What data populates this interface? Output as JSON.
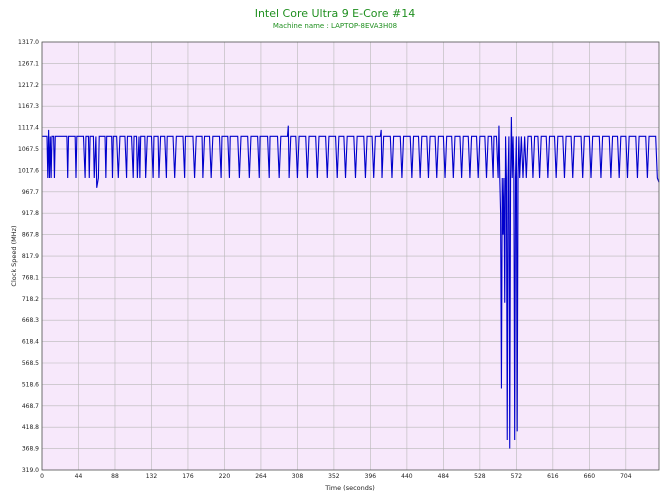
{
  "chart_data": {
    "type": "line",
    "title": "Intel Core Ultra 9 E-Core #14",
    "subtitle": "Machine name : LAPTOP-8EVA3H08",
    "xlabel": "Time (seconds)",
    "ylabel": "Clock Speed (MHz)",
    "xlim": [
      0,
      744
    ],
    "ylim": [
      319.0,
      1317.0
    ],
    "x_ticks": [
      0,
      44,
      88,
      132,
      176,
      220,
      264,
      308,
      352,
      396,
      440,
      484,
      528,
      572,
      616,
      660,
      704
    ],
    "y_ticks": [
      319.0,
      368.9,
      418.8,
      468.7,
      518.6,
      568.5,
      618.4,
      668.3,
      718.2,
      768.1,
      817.9,
      867.8,
      917.8,
      967.7,
      1017.6,
      1067.5,
      1117.4,
      1167.3,
      1217.2,
      1267.1,
      1317.0
    ],
    "grid": true,
    "colors": {
      "line": "#0000cc",
      "plot_bg": "#f7e8fb",
      "grid": "#b8b8b8",
      "title": "#1f8f1f"
    },
    "series": [
      {
        "values": [
          [
            0,
            1097
          ],
          [
            6,
            1097
          ],
          [
            7,
            1000
          ],
          [
            8,
            1112
          ],
          [
            9,
            1000
          ],
          [
            10,
            1097
          ],
          [
            11,
            1000
          ],
          [
            12,
            1097
          ],
          [
            14,
            1097
          ],
          [
            15,
            1000
          ],
          [
            16,
            1097
          ],
          [
            30,
            1097
          ],
          [
            31,
            1000
          ],
          [
            32,
            1097
          ],
          [
            40,
            1097
          ],
          [
            41,
            1000
          ],
          [
            42,
            1097
          ],
          [
            50,
            1097
          ],
          [
            52,
            1000
          ],
          [
            53,
            1097
          ],
          [
            56,
            1097
          ],
          [
            57,
            1000
          ],
          [
            58,
            1097
          ],
          [
            62,
            1097
          ],
          [
            63,
            1000
          ],
          [
            65,
            1097
          ],
          [
            66,
            977
          ],
          [
            68,
            1000
          ],
          [
            69,
            1097
          ],
          [
            76,
            1097
          ],
          [
            77,
            1000
          ],
          [
            78,
            1097
          ],
          [
            84,
            1097
          ],
          [
            85,
            1000
          ],
          [
            86,
            1097
          ],
          [
            90,
            1097
          ],
          [
            92,
            1000
          ],
          [
            94,
            1097
          ],
          [
            100,
            1097
          ],
          [
            102,
            1000
          ],
          [
            103,
            1097
          ],
          [
            108,
            1097
          ],
          [
            110,
            1000
          ],
          [
            111,
            1097
          ],
          [
            114,
            1097
          ],
          [
            115,
            1000
          ],
          [
            117,
            1097
          ],
          [
            118,
            1000
          ],
          [
            119,
            1097
          ],
          [
            124,
            1097
          ],
          [
            125,
            1000
          ],
          [
            127,
            1097
          ],
          [
            132,
            1097
          ],
          [
            134,
            1000
          ],
          [
            135,
            1097
          ],
          [
            140,
            1097
          ],
          [
            141,
            1000
          ],
          [
            143,
            1097
          ],
          [
            148,
            1097
          ],
          [
            150,
            1000
          ],
          [
            151,
            1097
          ],
          [
            158,
            1097
          ],
          [
            160,
            1000
          ],
          [
            162,
            1097
          ],
          [
            170,
            1097
          ],
          [
            172,
            1000
          ],
          [
            173,
            1097
          ],
          [
            182,
            1097
          ],
          [
            184,
            1000
          ],
          [
            186,
            1097
          ],
          [
            193,
            1097
          ],
          [
            194,
            1000
          ],
          [
            196,
            1097
          ],
          [
            202,
            1097
          ],
          [
            204,
            1000
          ],
          [
            206,
            1097
          ],
          [
            214,
            1097
          ],
          [
            216,
            1000
          ],
          [
            217,
            1097
          ],
          [
            224,
            1097
          ],
          [
            226,
            1000
          ],
          [
            227,
            1097
          ],
          [
            236,
            1097
          ],
          [
            238,
            1000
          ],
          [
            240,
            1097
          ],
          [
            248,
            1097
          ],
          [
            250,
            1000
          ],
          [
            252,
            1097
          ],
          [
            260,
            1097
          ],
          [
            262,
            1000
          ],
          [
            263,
            1097
          ],
          [
            272,
            1097
          ],
          [
            274,
            1000
          ],
          [
            275,
            1097
          ],
          [
            284,
            1097
          ],
          [
            286,
            1000
          ],
          [
            288,
            1097
          ],
          [
            296,
            1097
          ],
          [
            297,
            1122
          ],
          [
            298,
            1000
          ],
          [
            300,
            1097
          ],
          [
            306,
            1097
          ],
          [
            308,
            1000
          ],
          [
            310,
            1097
          ],
          [
            318,
            1097
          ],
          [
            320,
            1000
          ],
          [
            322,
            1097
          ],
          [
            330,
            1097
          ],
          [
            332,
            1000
          ],
          [
            334,
            1097
          ],
          [
            342,
            1097
          ],
          [
            344,
            1000
          ],
          [
            346,
            1097
          ],
          [
            354,
            1097
          ],
          [
            356,
            1000
          ],
          [
            358,
            1097
          ],
          [
            364,
            1097
          ],
          [
            366,
            1000
          ],
          [
            368,
            1097
          ],
          [
            376,
            1097
          ],
          [
            378,
            1000
          ],
          [
            380,
            1097
          ],
          [
            388,
            1097
          ],
          [
            390,
            1000
          ],
          [
            392,
            1097
          ],
          [
            398,
            1097
          ],
          [
            400,
            1000
          ],
          [
            402,
            1097
          ],
          [
            408,
            1097
          ],
          [
            409,
            1112
          ],
          [
            410,
            1000
          ],
          [
            412,
            1097
          ],
          [
            420,
            1097
          ],
          [
            422,
            1000
          ],
          [
            424,
            1097
          ],
          [
            432,
            1097
          ],
          [
            434,
            1000
          ],
          [
            436,
            1097
          ],
          [
            444,
            1097
          ],
          [
            446,
            1000
          ],
          [
            448,
            1097
          ],
          [
            454,
            1097
          ],
          [
            456,
            1000
          ],
          [
            458,
            1097
          ],
          [
            464,
            1097
          ],
          [
            466,
            1000
          ],
          [
            468,
            1097
          ],
          [
            474,
            1097
          ],
          [
            476,
            1000
          ],
          [
            478,
            1097
          ],
          [
            484,
            1097
          ],
          [
            486,
            1000
          ],
          [
            488,
            1097
          ],
          [
            494,
            1097
          ],
          [
            496,
            1000
          ],
          [
            498,
            1097
          ],
          [
            504,
            1097
          ],
          [
            506,
            1000
          ],
          [
            508,
            1097
          ],
          [
            514,
            1097
          ],
          [
            516,
            1000
          ],
          [
            518,
            1097
          ],
          [
            524,
            1097
          ],
          [
            526,
            1000
          ],
          [
            528,
            1097
          ],
          [
            534,
            1097
          ],
          [
            536,
            1000
          ],
          [
            538,
            1097
          ],
          [
            542,
            1097
          ],
          [
            544,
            1000
          ],
          [
            545,
            1097
          ],
          [
            548,
            1097
          ],
          [
            550,
            1000
          ],
          [
            551,
            1122
          ],
          [
            552,
            1000
          ],
          [
            553,
            918
          ],
          [
            554,
            509
          ],
          [
            555,
            1000
          ],
          [
            556,
            868
          ],
          [
            557,
            1000
          ],
          [
            558,
            709
          ],
          [
            559,
            1097
          ],
          [
            560,
            1000
          ],
          [
            561,
            389
          ],
          [
            562,
            1000
          ],
          [
            563,
            1097
          ],
          [
            564,
            369
          ],
          [
            565,
            1000
          ],
          [
            566,
            1142
          ],
          [
            567,
            1000
          ],
          [
            568,
            1097
          ],
          [
            569,
            1000
          ],
          [
            570,
            389
          ],
          [
            571,
            1000
          ],
          [
            572,
            1097
          ],
          [
            573,
            409
          ],
          [
            574,
            1000
          ],
          [
            575,
            1097
          ],
          [
            576,
            1000
          ],
          [
            578,
            1097
          ],
          [
            580,
            1000
          ],
          [
            582,
            1097
          ],
          [
            584,
            1000
          ],
          [
            586,
            1097
          ],
          [
            590,
            1097
          ],
          [
            592,
            1000
          ],
          [
            594,
            1097
          ],
          [
            598,
            1097
          ],
          [
            600,
            1000
          ],
          [
            602,
            1097
          ],
          [
            608,
            1097
          ],
          [
            610,
            1000
          ],
          [
            612,
            1097
          ],
          [
            618,
            1097
          ],
          [
            620,
            1000
          ],
          [
            622,
            1097
          ],
          [
            628,
            1097
          ],
          [
            630,
            1000
          ],
          [
            632,
            1097
          ],
          [
            638,
            1097
          ],
          [
            640,
            1000
          ],
          [
            642,
            1097
          ],
          [
            650,
            1097
          ],
          [
            652,
            1000
          ],
          [
            654,
            1097
          ],
          [
            660,
            1097
          ],
          [
            662,
            1000
          ],
          [
            664,
            1097
          ],
          [
            672,
            1097
          ],
          [
            674,
            1000
          ],
          [
            676,
            1097
          ],
          [
            684,
            1097
          ],
          [
            686,
            1000
          ],
          [
            688,
            1097
          ],
          [
            694,
            1097
          ],
          [
            696,
            1000
          ],
          [
            698,
            1097
          ],
          [
            704,
            1097
          ],
          [
            706,
            1000
          ],
          [
            708,
            1097
          ],
          [
            716,
            1097
          ],
          [
            718,
            1000
          ],
          [
            720,
            1097
          ],
          [
            728,
            1097
          ],
          [
            730,
            1000
          ],
          [
            732,
            1097
          ],
          [
            740,
            1097
          ],
          [
            742,
            1000
          ],
          [
            744,
            990
          ]
        ]
      }
    ]
  }
}
